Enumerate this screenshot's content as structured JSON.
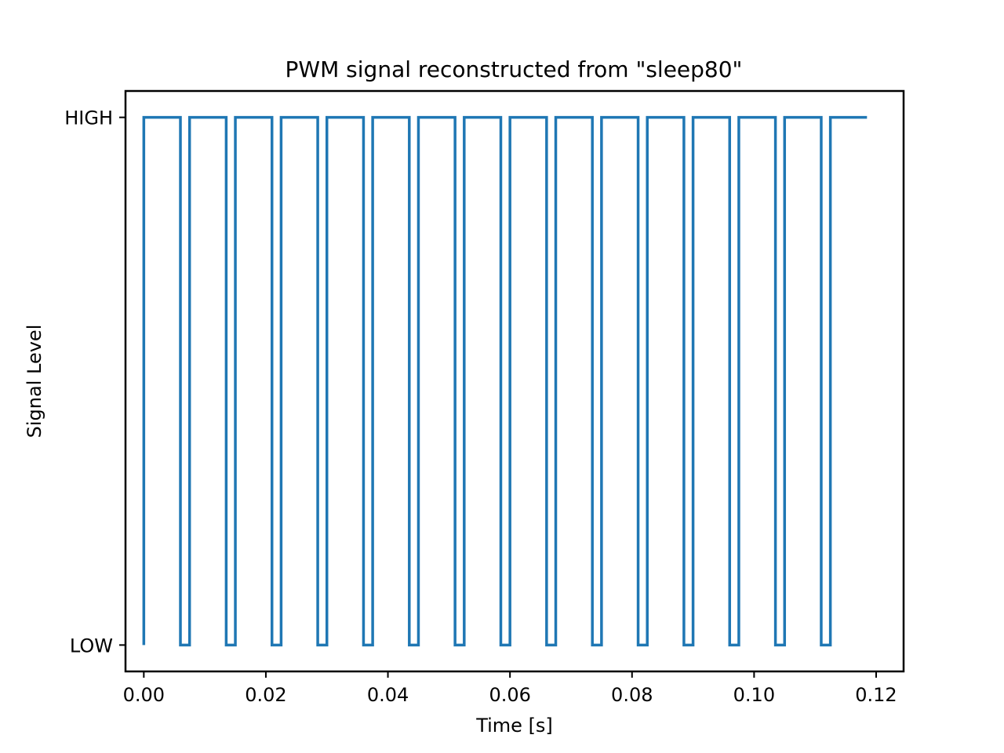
{
  "chart_data": {
    "type": "line",
    "title": "PWM signal reconstructed from \"sleep80\"",
    "xlabel": "Time [s]",
    "ylabel": "Signal Level",
    "xlim": [
      -0.003,
      0.1245
    ],
    "ylim": [
      -0.05,
      1.05
    ],
    "x_ticks": [
      0.0,
      0.02,
      0.04,
      0.06,
      0.08,
      0.1,
      0.12
    ],
    "x_tick_labels": [
      "0.00",
      "0.02",
      "0.04",
      "0.06",
      "0.08",
      "0.10",
      "0.12"
    ],
    "y_ticks": [
      0,
      1
    ],
    "y_tick_labels": [
      "LOW",
      "HIGH"
    ],
    "grid": false,
    "legend": null,
    "series": [
      {
        "color": "#1f77b4",
        "step": true,
        "x": [
          0.0,
          0.0,
          0.006,
          0.006,
          0.0075,
          0.0075,
          0.0135,
          0.0135,
          0.015,
          0.015,
          0.021,
          0.021,
          0.0225,
          0.0225,
          0.0285,
          0.0285,
          0.03,
          0.03,
          0.036,
          0.036,
          0.0375,
          0.0375,
          0.0435,
          0.0435,
          0.045,
          0.045,
          0.051,
          0.051,
          0.0525,
          0.0525,
          0.0585,
          0.0585,
          0.06,
          0.06,
          0.066,
          0.066,
          0.0675,
          0.0675,
          0.0735,
          0.0735,
          0.075,
          0.075,
          0.081,
          0.081,
          0.0825,
          0.0825,
          0.0885,
          0.0885,
          0.09,
          0.09,
          0.096,
          0.096,
          0.0975,
          0.0975,
          0.1035,
          0.1035,
          0.105,
          0.105,
          0.111,
          0.111,
          0.1125,
          0.1125,
          0.1185
        ],
        "y": [
          0,
          1,
          1,
          0,
          0,
          1,
          1,
          0,
          0,
          1,
          1,
          0,
          0,
          1,
          1,
          0,
          0,
          1,
          1,
          0,
          0,
          1,
          1,
          0,
          0,
          1,
          1,
          0,
          0,
          1,
          1,
          0,
          0,
          1,
          1,
          0,
          0,
          1,
          1,
          0,
          0,
          1,
          1,
          0,
          0,
          1,
          1,
          0,
          0,
          1,
          1,
          0,
          0,
          1,
          1,
          0,
          0,
          1,
          1,
          0,
          0,
          1,
          1
        ]
      }
    ]
  }
}
